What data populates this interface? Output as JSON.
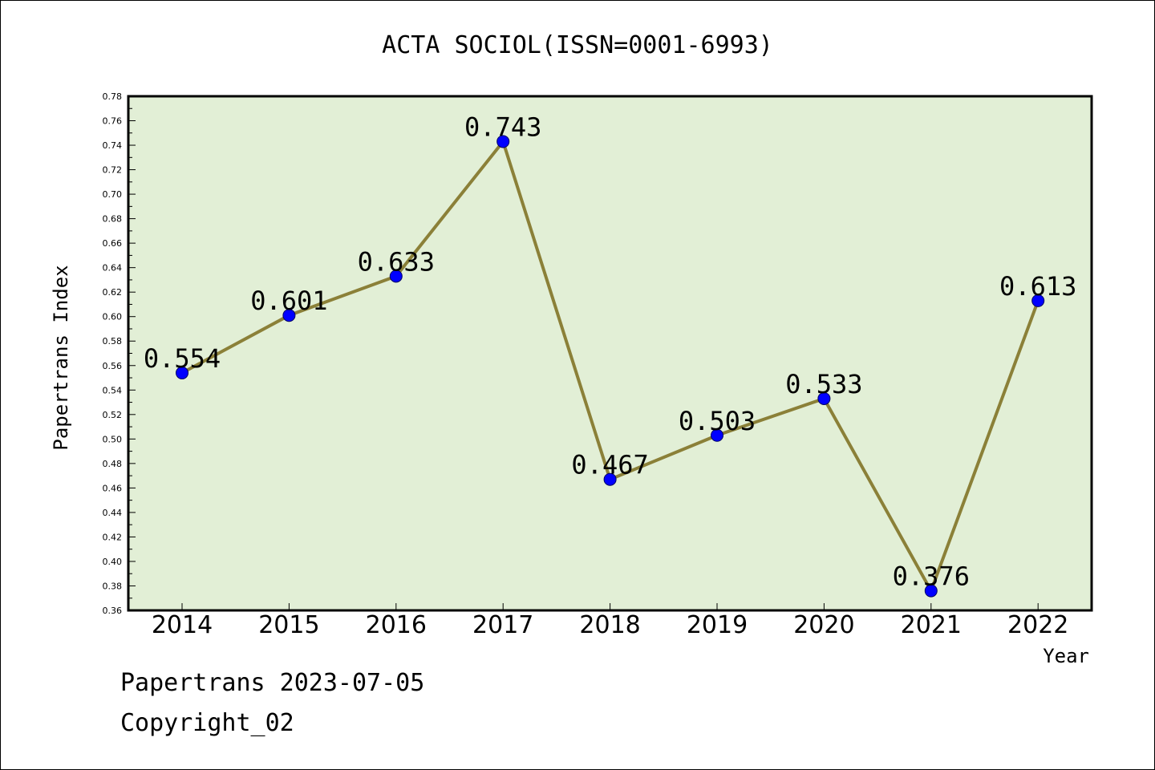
{
  "chart_data": {
    "type": "line",
    "title": "ACTA SOCIOL(ISSN=0001-6993)",
    "xlabel": "Year",
    "ylabel": "Papertrans Index",
    "categories": [
      "2014",
      "2015",
      "2016",
      "2017",
      "2018",
      "2019",
      "2020",
      "2021",
      "2022"
    ],
    "values": [
      0.554,
      0.601,
      0.633,
      0.743,
      0.467,
      0.503,
      0.533,
      0.376,
      0.613
    ],
    "data_labels": [
      "0.554",
      "0.601",
      "0.633",
      "0.743",
      "0.467",
      "0.503",
      "0.533",
      "0.376",
      "0.613"
    ],
    "ylim": [
      0.36,
      0.78
    ],
    "yticks": [
      "0.36",
      "0.38",
      "0.40",
      "0.42",
      "0.44",
      "0.46",
      "0.48",
      "0.50",
      "0.52",
      "0.54",
      "0.56",
      "0.58",
      "0.60",
      "0.62",
      "0.64",
      "0.66",
      "0.68",
      "0.70",
      "0.72",
      "0.74",
      "0.76",
      "0.78"
    ],
    "grid": false,
    "colors": {
      "plot_background": "#e2efd6",
      "line": "#8b8038",
      "marker": "#0000ff"
    }
  },
  "footer": {
    "line1": "Papertrans 2023-07-05",
    "line2": "Copyright_02"
  }
}
